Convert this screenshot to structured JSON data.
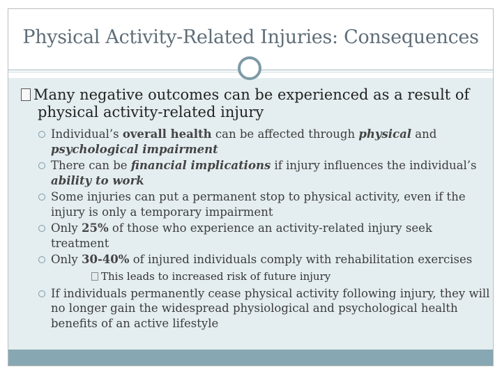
{
  "title": "Physical Activity-Related Injuries: Consequences",
  "main_point": {
    "line1": "Many negative outcomes can be experienced as a result of",
    "line2": "physical activity-related injury"
  },
  "items": [
    {
      "pre": "Individual’s ",
      "bold1": "overall health",
      "mid": " can be affected through ",
      "boldital1": "physical",
      "mid2": " and ",
      "boldital2": "psychological impairment"
    },
    {
      "pre": "There can be ",
      "boldital1": "financial implications",
      "mid": " if injury influences the individual’s ",
      "boldital2": "ability to work"
    },
    {
      "text": "Some injuries can put a permanent stop to physical activity, even if the injury is only a temporary impairment"
    },
    {
      "pre": "Only ",
      "bold1": "25%",
      "post": " of those who experience an activity-related injury seek treatment"
    },
    {
      "pre": "Only ",
      "bold1": "30-40%",
      "post": " of injured individuals comply with rehabilitation exercises"
    }
  ],
  "sub_sub_item": "This leads to increased risk of future injury",
  "last_item": "If individuals permanently cease physical activity following injury, they will no longer gain the widespread physiological and psychological health benefits of an active lifestyle",
  "colors": {
    "accent": "#7d9aa6",
    "panel": "#e4edf0",
    "footer": "#87a7b2",
    "title_text": "#5f6e78"
  }
}
